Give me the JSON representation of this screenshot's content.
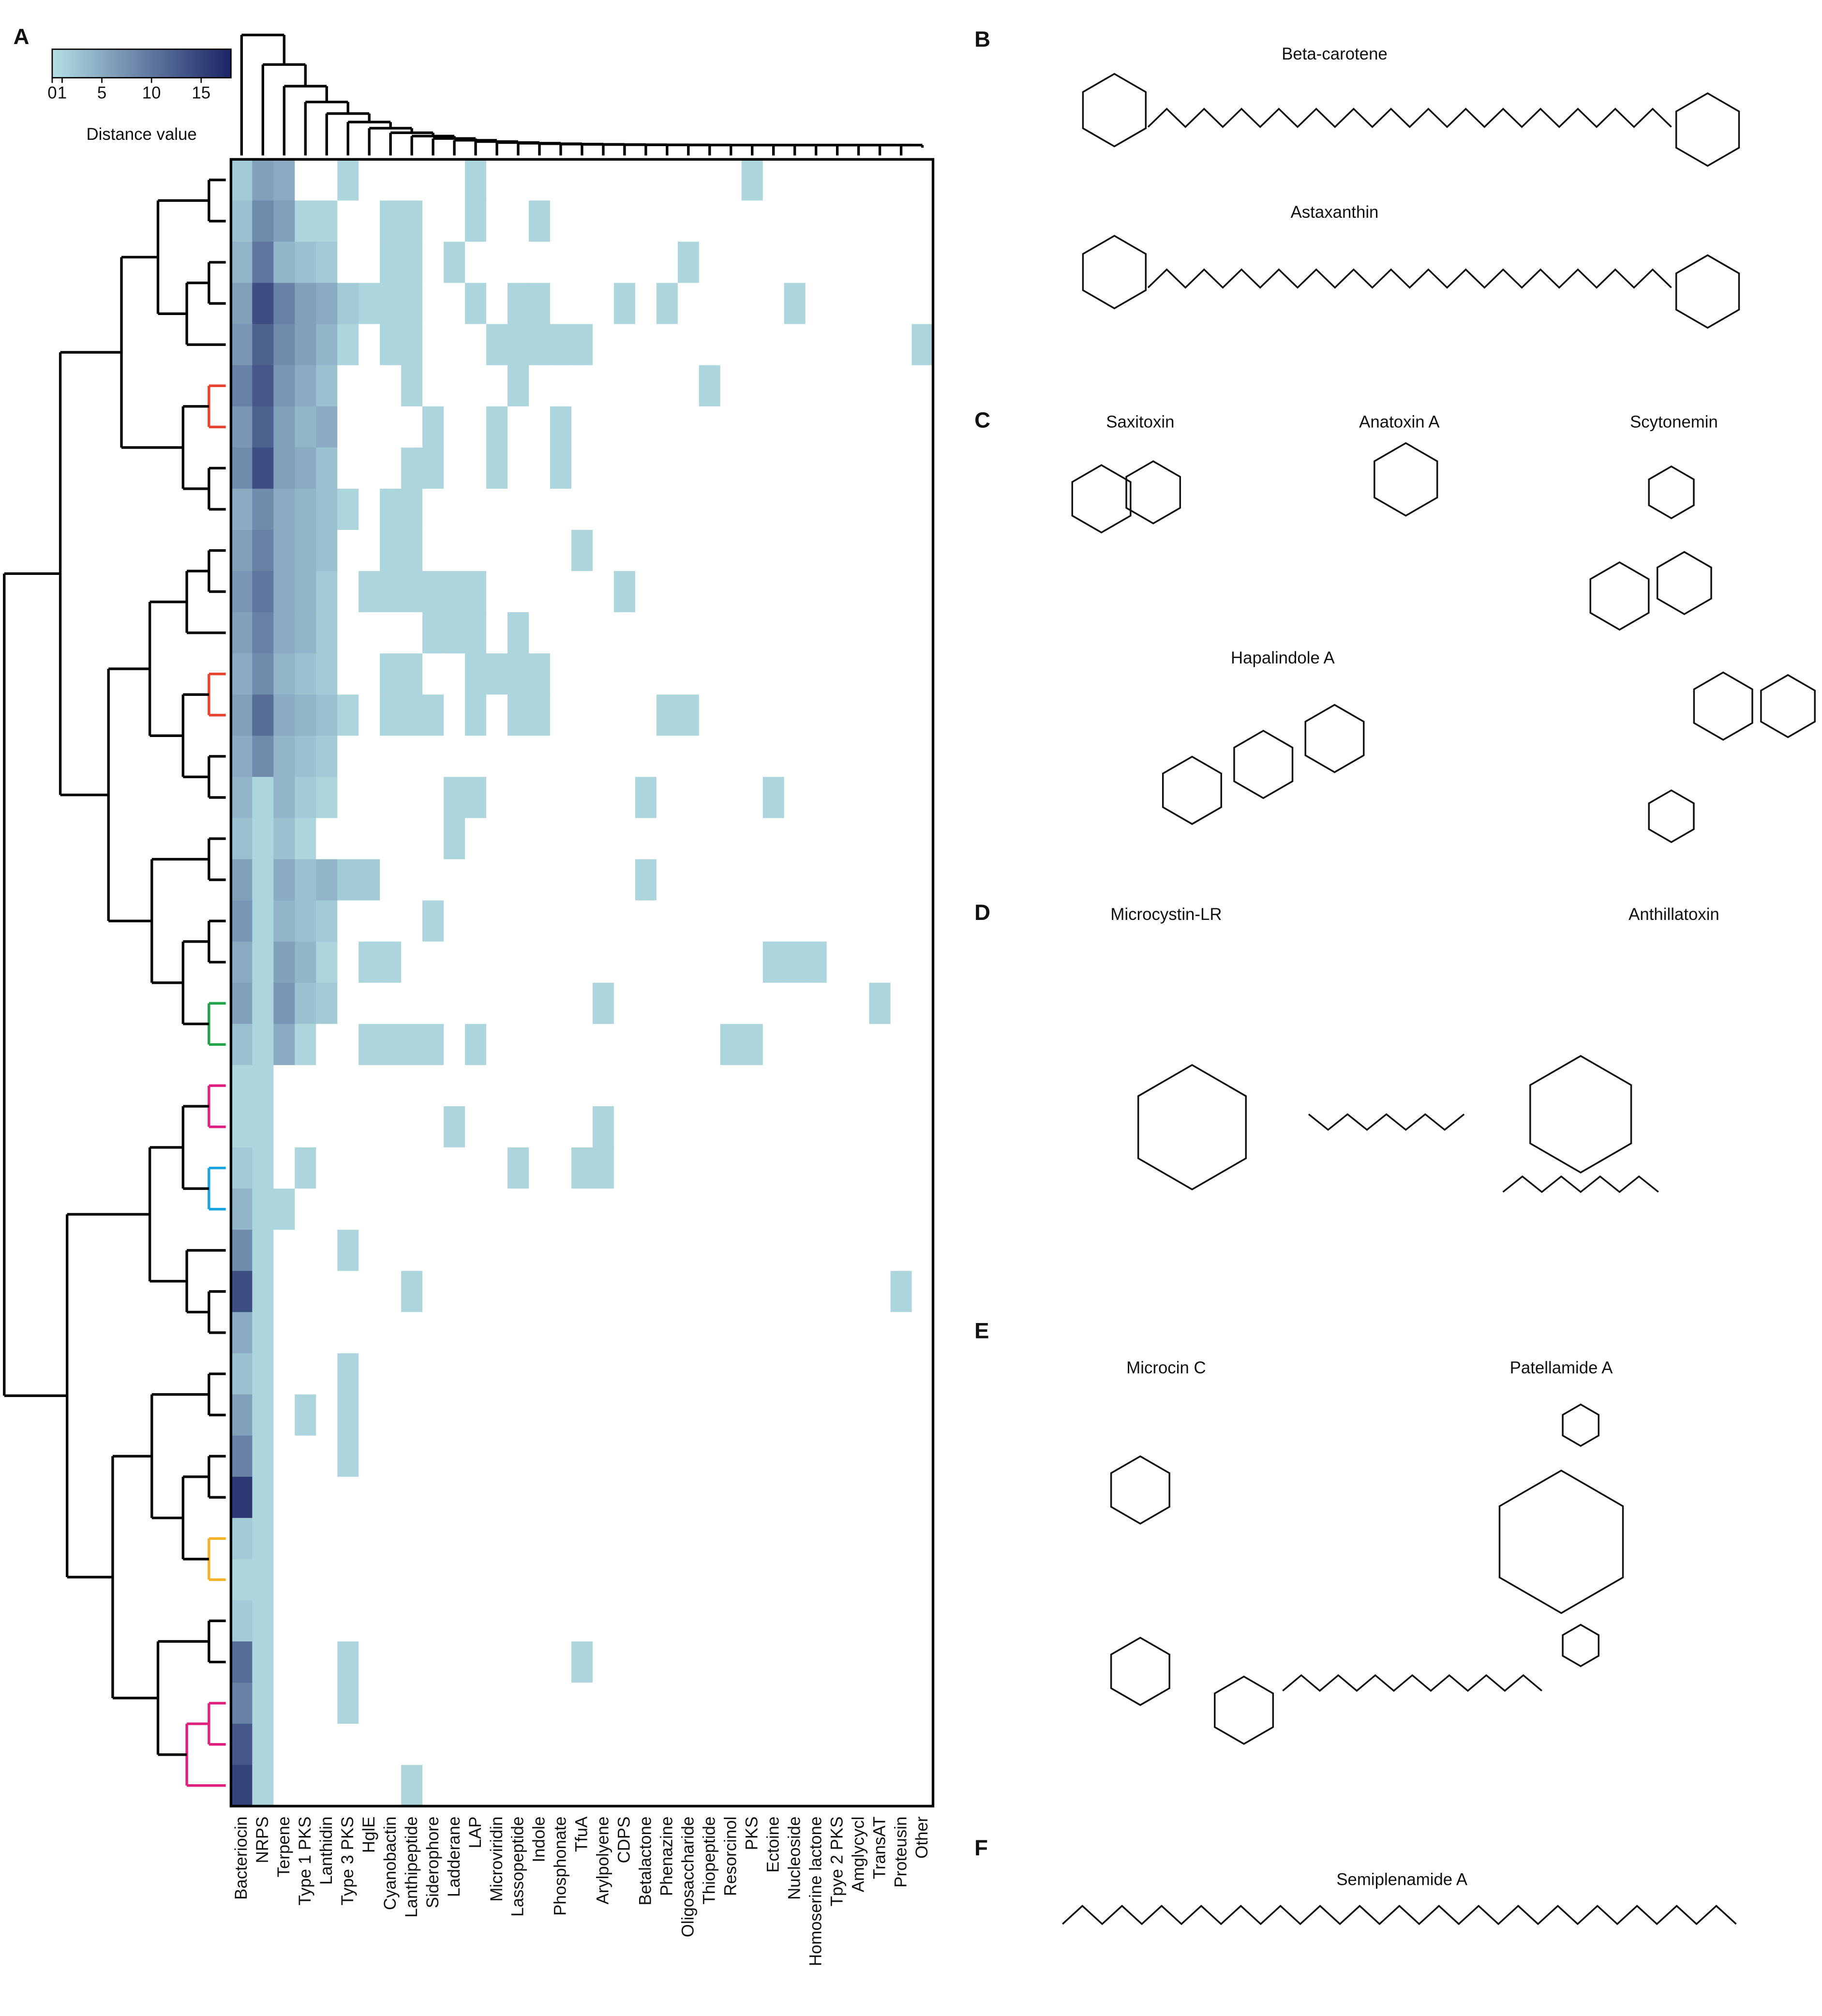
{
  "chart_data": {
    "type": "heatmap",
    "panel_label": "A",
    "columns": [
      "Bacteriocin",
      "NRPS",
      "Terpene",
      "Type 1 PKS",
      "Lanthidin",
      "Type 3 PKS",
      "HglE",
      "Cyanobactin",
      "Lanthipeptide",
      "Siderophore",
      "Ladderane",
      "LAP",
      "Microviridin",
      "Lassopeptide",
      "Indole",
      "Phosphonate",
      "TfuA",
      "Arylpolyene",
      "CDPS",
      "Betalactone",
      "Phenazine",
      "Oligosaccharide",
      "Thiopeptide",
      "Resorcinol",
      "PKS",
      "Ectoine",
      "Nucleoside",
      "Homoserine lactone",
      "Tpye 2 PKS",
      "Amglycycl",
      "TransAT",
      "Proteusin",
      "Other"
    ],
    "values": [
      [
        2,
        6,
        5,
        0,
        0,
        1,
        0,
        0,
        0,
        0,
        0,
        1,
        0,
        0,
        0,
        0,
        0,
        0,
        0,
        0,
        0,
        0,
        0,
        0,
        1,
        0,
        0,
        0,
        0,
        0,
        0,
        0,
        0
      ],
      [
        3,
        8,
        6,
        1,
        1,
        0,
        0,
        1,
        1,
        0,
        0,
        1,
        0,
        0,
        1,
        0,
        0,
        0,
        0,
        0,
        0,
        0,
        0,
        0,
        0,
        0,
        0,
        0,
        0,
        0,
        0,
        0,
        0
      ],
      [
        4,
        10,
        4,
        3,
        2,
        0,
        0,
        1,
        1,
        0,
        1,
        0,
        0,
        0,
        0,
        0,
        0,
        0,
        0,
        0,
        0,
        1,
        0,
        0,
        0,
        0,
        0,
        0,
        0,
        0,
        0,
        0,
        0
      ],
      [
        6,
        14,
        9,
        6,
        5,
        2,
        1,
        1,
        1,
        0,
        0,
        1,
        0,
        1,
        1,
        0,
        0,
        0,
        1,
        0,
        1,
        0,
        0,
        0,
        0,
        0,
        1,
        0,
        0,
        0,
        0,
        0,
        0
      ],
      [
        7,
        12,
        8,
        6,
        4,
        1,
        0,
        1,
        1,
        0,
        0,
        0,
        1,
        1,
        1,
        1,
        1,
        0,
        0,
        0,
        0,
        0,
        0,
        0,
        0,
        0,
        0,
        0,
        0,
        0,
        0,
        0,
        1
      ],
      [
        9,
        13,
        7,
        5,
        3,
        0,
        0,
        0,
        1,
        0,
        0,
        0,
        0,
        1,
        0,
        0,
        0,
        0,
        0,
        0,
        0,
        0,
        1,
        0,
        0,
        0,
        0,
        0,
        0,
        0,
        0,
        0,
        0
      ],
      [
        7,
        12,
        6,
        4,
        5,
        0,
        0,
        0,
        0,
        1,
        0,
        0,
        1,
        0,
        0,
        1,
        0,
        0,
        0,
        0,
        0,
        0,
        0,
        0,
        0,
        0,
        0,
        0,
        0,
        0,
        0,
        0,
        0
      ],
      [
        8,
        14,
        6,
        5,
        3,
        0,
        0,
        0,
        1,
        1,
        0,
        0,
        1,
        0,
        0,
        1,
        0,
        0,
        0,
        0,
        0,
        0,
        0,
        0,
        0,
        0,
        0,
        0,
        0,
        0,
        0,
        0,
        0
      ],
      [
        5,
        8,
        5,
        4,
        3,
        1,
        0,
        1,
        1,
        0,
        0,
        0,
        0,
        0,
        0,
        0,
        0,
        0,
        0,
        0,
        0,
        0,
        0,
        0,
        0,
        0,
        0,
        0,
        0,
        0,
        0,
        0,
        0
      ],
      [
        6,
        9,
        5,
        4,
        3,
        0,
        0,
        1,
        1,
        0,
        0,
        0,
        0,
        0,
        0,
        0,
        1,
        0,
        0,
        0,
        0,
        0,
        0,
        0,
        0,
        0,
        0,
        0,
        0,
        0,
        0,
        0,
        0
      ],
      [
        7,
        10,
        5,
        4,
        2,
        0,
        1,
        1,
        1,
        1,
        1,
        1,
        0,
        0,
        0,
        0,
        0,
        0,
        1,
        0,
        0,
        0,
        0,
        0,
        0,
        0,
        0,
        0,
        0,
        0,
        0,
        0,
        0
      ],
      [
        6,
        9,
        5,
        4,
        2,
        0,
        0,
        0,
        0,
        1,
        1,
        1,
        0,
        1,
        0,
        0,
        0,
        0,
        0,
        0,
        0,
        0,
        0,
        0,
        0,
        0,
        0,
        0,
        0,
        0,
        0,
        0,
        0
      ],
      [
        5,
        8,
        4,
        3,
        2,
        0,
        0,
        1,
        1,
        0,
        0,
        1,
        1,
        1,
        1,
        0,
        0,
        0,
        0,
        0,
        0,
        0,
        0,
        0,
        0,
        0,
        0,
        0,
        0,
        0,
        0,
        0,
        0
      ],
      [
        6,
        11,
        5,
        4,
        3,
        1,
        0,
        1,
        1,
        1,
        0,
        1,
        0,
        1,
        1,
        0,
        0,
        0,
        0,
        0,
        1,
        1,
        0,
        0,
        0,
        0,
        0,
        0,
        0,
        0,
        0,
        0,
        0
      ],
      [
        5,
        8,
        4,
        3,
        2,
        0,
        0,
        0,
        0,
        0,
        0,
        0,
        0,
        0,
        0,
        0,
        0,
        0,
        0,
        0,
        0,
        0,
        0,
        0,
        0,
        0,
        0,
        0,
        0,
        0,
        0,
        0,
        0
      ],
      [
        4,
        1,
        4,
        2,
        1,
        0,
        0,
        0,
        0,
        0,
        1,
        1,
        0,
        0,
        0,
        0,
        0,
        0,
        0,
        1,
        0,
        0,
        0,
        0,
        0,
        1,
        0,
        0,
        0,
        0,
        0,
        0,
        0
      ],
      [
        3,
        1,
        3,
        1,
        0,
        0,
        0,
        0,
        0,
        0,
        1,
        0,
        0,
        0,
        0,
        0,
        0,
        0,
        0,
        0,
        0,
        0,
        0,
        0,
        0,
        0,
        0,
        0,
        0,
        0,
        0,
        0,
        0
      ],
      [
        6,
        1,
        5,
        3,
        4,
        2,
        2,
        0,
        0,
        0,
        0,
        0,
        0,
        0,
        0,
        0,
        0,
        0,
        0,
        1,
        0,
        0,
        0,
        0,
        0,
        0,
        0,
        0,
        0,
        0,
        0,
        0,
        0
      ],
      [
        7,
        1,
        4,
        3,
        2,
        0,
        0,
        0,
        0,
        1,
        0,
        0,
        0,
        0,
        0,
        0,
        0,
        0,
        0,
        0,
        0,
        0,
        0,
        0,
        0,
        0,
        0,
        0,
        0,
        0,
        0,
        0,
        0
      ],
      [
        5,
        1,
        6,
        4,
        1,
        0,
        1,
        1,
        0,
        0,
        0,
        0,
        0,
        0,
        0,
        0,
        0,
        0,
        0,
        0,
        0,
        0,
        0,
        0,
        0,
        1,
        1,
        1,
        0,
        0,
        0,
        0,
        0
      ],
      [
        6,
        1,
        7,
        3,
        2,
        0,
        0,
        0,
        0,
        0,
        0,
        0,
        0,
        0,
        0,
        0,
        0,
        1,
        0,
        0,
        0,
        0,
        0,
        0,
        0,
        0,
        0,
        0,
        0,
        0,
        1,
        0,
        0
      ],
      [
        3,
        1,
        5,
        1,
        0,
        0,
        1,
        1,
        1,
        1,
        0,
        1,
        0,
        0,
        0,
        0,
        0,
        0,
        0,
        0,
        0,
        0,
        0,
        1,
        1,
        0,
        0,
        0,
        0,
        0,
        0,
        0,
        0
      ],
      [
        1,
        1,
        0,
        0,
        0,
        0,
        0,
        0,
        0,
        0,
        0,
        0,
        0,
        0,
        0,
        0,
        0,
        0,
        0,
        0,
        0,
        0,
        0,
        0,
        0,
        0,
        0,
        0,
        0,
        0,
        0,
        0,
        0
      ],
      [
        1,
        1,
        0,
        0,
        0,
        0,
        0,
        0,
        0,
        0,
        1,
        0,
        0,
        0,
        0,
        0,
        0,
        1,
        0,
        0,
        0,
        0,
        0,
        0,
        0,
        0,
        0,
        0,
        0,
        0,
        0,
        0,
        0
      ],
      [
        2,
        1,
        0,
        1,
        0,
        0,
        0,
        0,
        0,
        0,
        0,
        0,
        0,
        1,
        0,
        0,
        1,
        1,
        0,
        0,
        0,
        0,
        0,
        0,
        0,
        0,
        0,
        0,
        0,
        0,
        0,
        0,
        0
      ],
      [
        4,
        1,
        1,
        0,
        0,
        0,
        0,
        0,
        0,
        0,
        0,
        0,
        0,
        0,
        0,
        0,
        0,
        0,
        0,
        0,
        0,
        0,
        0,
        0,
        0,
        0,
        0,
        0,
        0,
        0,
        0,
        0,
        0
      ],
      [
        8,
        1,
        0,
        0,
        0,
        1,
        0,
        0,
        0,
        0,
        0,
        0,
        0,
        0,
        0,
        0,
        0,
        0,
        0,
        0,
        0,
        0,
        0,
        0,
        0,
        0,
        0,
        0,
        0,
        0,
        0,
        0,
        0
      ],
      [
        14,
        1,
        0,
        0,
        0,
        0,
        0,
        0,
        1,
        0,
        0,
        0,
        0,
        0,
        0,
        0,
        0,
        0,
        0,
        0,
        0,
        0,
        0,
        0,
        0,
        0,
        0,
        0,
        0,
        0,
        0,
        1,
        0
      ],
      [
        5,
        1,
        0,
        0,
        0,
        0,
        0,
        0,
        0,
        0,
        0,
        0,
        0,
        0,
        0,
        0,
        0,
        0,
        0,
        0,
        0,
        0,
        0,
        0,
        0,
        0,
        0,
        0,
        0,
        0,
        0,
        0,
        0
      ],
      [
        3,
        1,
        0,
        0,
        0,
        1,
        0,
        0,
        0,
        0,
        0,
        0,
        0,
        0,
        0,
        0,
        0,
        0,
        0,
        0,
        0,
        0,
        0,
        0,
        0,
        0,
        0,
        0,
        0,
        0,
        0,
        0,
        0
      ],
      [
        6,
        1,
        0,
        1,
        0,
        1,
        0,
        0,
        0,
        0,
        0,
        0,
        0,
        0,
        0,
        0,
        0,
        0,
        0,
        0,
        0,
        0,
        0,
        0,
        0,
        0,
        0,
        0,
        0,
        0,
        0,
        0,
        0
      ],
      [
        9,
        1,
        0,
        0,
        0,
        1,
        0,
        0,
        0,
        0,
        0,
        0,
        0,
        0,
        0,
        0,
        0,
        0,
        0,
        0,
        0,
        0,
        0,
        0,
        0,
        0,
        0,
        0,
        0,
        0,
        0,
        0,
        0
      ],
      [
        16,
        1,
        0,
        0,
        0,
        0,
        0,
        0,
        0,
        0,
        0,
        0,
        0,
        0,
        0,
        0,
        0,
        0,
        0,
        0,
        0,
        0,
        0,
        0,
        0,
        0,
        0,
        0,
        0,
        0,
        0,
        0,
        0
      ],
      [
        2,
        1,
        0,
        0,
        0,
        0,
        0,
        0,
        0,
        0,
        0,
        0,
        0,
        0,
        0,
        0,
        0,
        0,
        0,
        0,
        0,
        0,
        0,
        0,
        0,
        0,
        0,
        0,
        0,
        0,
        0,
        0,
        0
      ],
      [
        1,
        1,
        0,
        0,
        0,
        0,
        0,
        0,
        0,
        0,
        0,
        0,
        0,
        0,
        0,
        0,
        0,
        0,
        0,
        0,
        0,
        0,
        0,
        0,
        0,
        0,
        0,
        0,
        0,
        0,
        0,
        0,
        0
      ],
      [
        2,
        1,
        0,
        0,
        0,
        0,
        0,
        0,
        0,
        0,
        0,
        0,
        0,
        0,
        0,
        0,
        0,
        0,
        0,
        0,
        0,
        0,
        0,
        0,
        0,
        0,
        0,
        0,
        0,
        0,
        0,
        0,
        0
      ],
      [
        11,
        1,
        0,
        0,
        0,
        1,
        0,
        0,
        0,
        0,
        0,
        0,
        0,
        0,
        0,
        0,
        1,
        0,
        0,
        0,
        0,
        0,
        0,
        0,
        0,
        0,
        0,
        0,
        0,
        0,
        0,
        0,
        0
      ],
      [
        9,
        1,
        0,
        0,
        0,
        1,
        0,
        0,
        0,
        0,
        0,
        0,
        0,
        0,
        0,
        0,
        0,
        0,
        0,
        0,
        0,
        0,
        0,
        0,
        0,
        0,
        0,
        0,
        0,
        0,
        0,
        0,
        0
      ],
      [
        13,
        1,
        0,
        0,
        0,
        0,
        0,
        0,
        0,
        0,
        0,
        0,
        0,
        0,
        0,
        0,
        0,
        0,
        0,
        0,
        0,
        0,
        0,
        0,
        0,
        0,
        0,
        0,
        0,
        0,
        0,
        0,
        0
      ],
      [
        15,
        1,
        0,
        0,
        0,
        0,
        0,
        0,
        1,
        0,
        0,
        0,
        0,
        0,
        0,
        0,
        0,
        0,
        0,
        0,
        0,
        0,
        0,
        0,
        0,
        0,
        0,
        0,
        0,
        0,
        0,
        0,
        0
      ]
    ],
    "colorbar": {
      "label": "Distance value",
      "lim": [
        0,
        18
      ],
      "ticks": [
        0,
        1,
        5,
        10,
        15
      ],
      "colors": [
        "#b4dfe5",
        "#1b2466"
      ]
    },
    "empty_color": "#ffffff"
  },
  "panels": [
    {
      "label": "B",
      "molecules": [
        "Beta-carotene",
        "Astaxanthin"
      ]
    },
    {
      "label": "C",
      "molecules": [
        "Saxitoxin",
        "Anatoxin A",
        "Scytonemin",
        "Hapalindole A"
      ]
    },
    {
      "label": "D",
      "molecules": [
        "Microcystin-LR",
        "Anthillatoxin"
      ]
    },
    {
      "label": "E",
      "molecules": [
        "Microcin C",
        "Patellamide A"
      ]
    },
    {
      "label": "F",
      "molecules": [
        "Semiplenamide A"
      ]
    }
  ]
}
